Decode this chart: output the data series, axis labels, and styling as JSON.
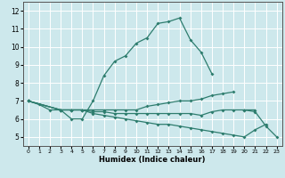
{
  "title": "",
  "xlabel": "Humidex (Indice chaleur)",
  "ylabel": "",
  "bg_color": "#cde8ec",
  "grid_color": "#ffffff",
  "line_color": "#2e7d6e",
  "xlim": [
    -0.5,
    23.5
  ],
  "ylim": [
    4.5,
    12.5
  ],
  "xticks": [
    0,
    1,
    2,
    3,
    4,
    5,
    6,
    7,
    8,
    9,
    10,
    11,
    12,
    13,
    14,
    15,
    16,
    17,
    18,
    19,
    20,
    21,
    22,
    23
  ],
  "yticks": [
    5,
    6,
    7,
    8,
    9,
    10,
    11,
    12
  ],
  "lines": [
    {
      "x": [
        0,
        1,
        2,
        3,
        4,
        5,
        6,
        7,
        8,
        9,
        10,
        11,
        12,
        13,
        14,
        15,
        16,
        17
      ],
      "y": [
        7.0,
        6.8,
        6.5,
        6.5,
        6.0,
        6.0,
        7.0,
        8.4,
        9.2,
        9.5,
        10.2,
        10.5,
        11.3,
        11.4,
        11.6,
        10.4,
        9.7,
        8.5
      ]
    },
    {
      "x": [
        0,
        3,
        4,
        5,
        6,
        7,
        8,
        9,
        10,
        11,
        12,
        13,
        14,
        15,
        16,
        17,
        18,
        19
      ],
      "y": [
        7.0,
        6.5,
        6.5,
        6.5,
        6.5,
        6.5,
        6.5,
        6.5,
        6.5,
        6.7,
        6.8,
        6.9,
        7.0,
        7.0,
        7.1,
        7.3,
        7.4,
        7.5
      ]
    },
    {
      "x": [
        0,
        3,
        4,
        5,
        6,
        7,
        8,
        9,
        10,
        11,
        12,
        13,
        14,
        15,
        16,
        17,
        18,
        19,
        20,
        21
      ],
      "y": [
        7.0,
        6.5,
        6.5,
        6.5,
        6.4,
        6.4,
        6.3,
        6.3,
        6.3,
        6.3,
        6.3,
        6.3,
        6.3,
        6.3,
        6.2,
        6.4,
        6.5,
        6.5,
        6.5,
        6.5
      ]
    },
    {
      "x": [
        0,
        3,
        4,
        5,
        6,
        7,
        8,
        9,
        10,
        11,
        12,
        13,
        14,
        15,
        16,
        17,
        18,
        19,
        20,
        21,
        22
      ],
      "y": [
        7.0,
        6.5,
        6.5,
        6.5,
        6.3,
        6.2,
        6.1,
        6.0,
        5.9,
        5.8,
        5.7,
        5.7,
        5.6,
        5.5,
        5.4,
        5.3,
        5.2,
        5.1,
        5.0,
        5.4,
        5.7
      ]
    },
    {
      "x": [
        20,
        21,
        22,
        23
      ],
      "y": [
        6.5,
        6.4,
        5.6,
        5.0
      ]
    }
  ]
}
